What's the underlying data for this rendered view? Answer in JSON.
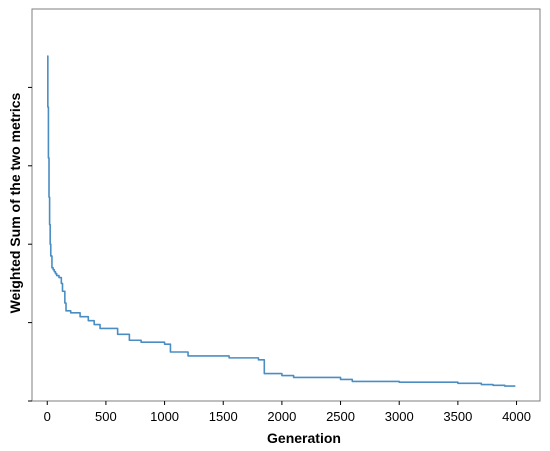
{
  "chart_data": {
    "type": "line",
    "title": "",
    "xlabel": "Generation",
    "ylabel": "Weighted Sum of the two metrics",
    "xlim": [
      -130,
      4200
    ],
    "ylim": [
      0,
      100
    ],
    "x_ticks": [
      0,
      500,
      1000,
      1500,
      2000,
      2500,
      3000,
      3500,
      4000
    ],
    "x_tick_labels": [
      "0",
      "500",
      "1000",
      "1500",
      "2000",
      "2500",
      "3000",
      "3500",
      "4000"
    ],
    "y_ticks": [
      0,
      20,
      40,
      60,
      80
    ],
    "y_tick_labels": [
      "",
      "",
      "",
      "",
      ""
    ],
    "grid": false,
    "legend": "none",
    "line_color": "#4a8dc2",
    "series": [
      {
        "x": [
          0,
          5,
          10,
          15,
          20,
          25,
          30,
          40,
          50,
          60,
          70,
          80,
          100,
          120,
          130,
          150,
          160,
          200,
          280,
          350,
          400,
          450,
          600,
          700,
          800,
          1000,
          1050,
          1200,
          1300,
          1500,
          1550,
          1800,
          1850,
          2000,
          2100,
          2200,
          2500,
          2600,
          2800,
          3000,
          3500,
          3700,
          3800,
          3900,
          3990
        ],
        "y": [
          88,
          75,
          62,
          52,
          45,
          40,
          37,
          34,
          33.5,
          33,
          32.5,
          32,
          31.5,
          30,
          28,
          25,
          23,
          22.5,
          21.5,
          20.5,
          19.5,
          18.5,
          17,
          15.5,
          15,
          14.5,
          12.5,
          11.5,
          11.5,
          11.5,
          11,
          10.5,
          7,
          6.5,
          6,
          6,
          5.5,
          5,
          5,
          4.8,
          4.5,
          4.2,
          4,
          3.8,
          3.8
        ]
      }
    ]
  }
}
